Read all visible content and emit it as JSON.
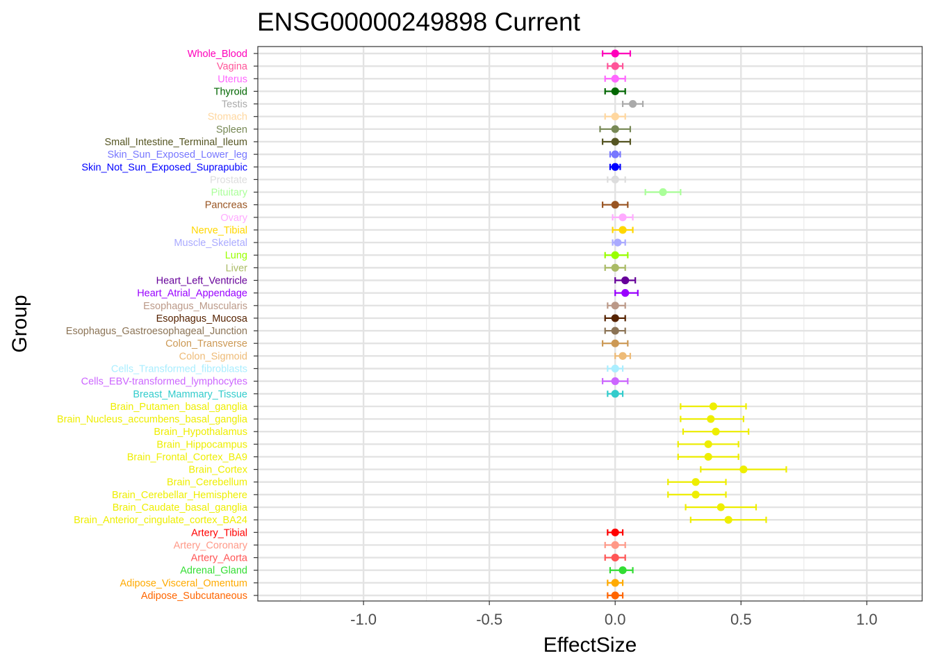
{
  "chart_data": {
    "type": "scatter",
    "title": "ENSG00000249898 Current",
    "xlabel": "EffectSize",
    "ylabel": "Group",
    "xlim": [
      -1.42,
      1.22
    ],
    "xticks": [
      -1.0,
      -0.5,
      0.0,
      0.5,
      1.0
    ],
    "xtick_labels": [
      "-1.0",
      "-0.5",
      "0.0",
      "0.5",
      "1.0"
    ],
    "grid": true,
    "legend": "none",
    "groups": [
      {
        "name": "Whole_Blood",
        "value": 0.0,
        "lower": -0.05,
        "upper": 0.06,
        "color": "#FF00BB"
      },
      {
        "name": "Vagina",
        "value": 0.0,
        "lower": -0.03,
        "upper": 0.03,
        "color": "#FF5599"
      },
      {
        "name": "Uterus",
        "value": 0.0,
        "lower": -0.04,
        "upper": 0.04,
        "color": "#FF66FF"
      },
      {
        "name": "Thyroid",
        "value": 0.0,
        "lower": -0.04,
        "upper": 0.04,
        "color": "#006600"
      },
      {
        "name": "Testis",
        "value": 0.07,
        "lower": 0.03,
        "upper": 0.11,
        "color": "#AAAAAA"
      },
      {
        "name": "Stomach",
        "value": 0.0,
        "lower": -0.04,
        "upper": 0.04,
        "color": "#FFD79F"
      },
      {
        "name": "Spleen",
        "value": 0.0,
        "lower": -0.06,
        "upper": 0.06,
        "color": "#778855"
      },
      {
        "name": "Small_Intestine_Terminal_Ileum",
        "value": 0.0,
        "lower": -0.05,
        "upper": 0.06,
        "color": "#555522"
      },
      {
        "name": "Skin_Sun_Exposed_Lower_leg",
        "value": 0.0,
        "lower": -0.02,
        "upper": 0.02,
        "color": "#7777FF"
      },
      {
        "name": "Skin_Not_Sun_Exposed_Suprapubic",
        "value": 0.0,
        "lower": -0.02,
        "upper": 0.02,
        "color": "#0000FF"
      },
      {
        "name": "Prostate",
        "value": 0.0,
        "lower": -0.03,
        "upper": 0.04,
        "color": "#DDDDDD"
      },
      {
        "name": "Pituitary",
        "value": 0.19,
        "lower": 0.12,
        "upper": 0.26,
        "color": "#AAFF99"
      },
      {
        "name": "Pancreas",
        "value": 0.0,
        "lower": -0.05,
        "upper": 0.05,
        "color": "#995522"
      },
      {
        "name": "Ovary",
        "value": 0.03,
        "lower": -0.01,
        "upper": 0.07,
        "color": "#FFAAFF"
      },
      {
        "name": "Nerve_Tibial",
        "value": 0.03,
        "lower": -0.01,
        "upper": 0.07,
        "color": "#FFD700"
      },
      {
        "name": "Muscle_Skeletal",
        "value": 0.01,
        "lower": -0.01,
        "upper": 0.04,
        "color": "#AAAAFF"
      },
      {
        "name": "Lung",
        "value": 0.0,
        "lower": -0.04,
        "upper": 0.05,
        "color": "#99FF00"
      },
      {
        "name": "Liver",
        "value": 0.0,
        "lower": -0.04,
        "upper": 0.04,
        "color": "#AABB66"
      },
      {
        "name": "Heart_Left_Ventricle",
        "value": 0.04,
        "lower": 0.0,
        "upper": 0.08,
        "color": "#660099"
      },
      {
        "name": "Heart_Atrial_Appendage",
        "value": 0.04,
        "lower": 0.0,
        "upper": 0.09,
        "color": "#9900FF"
      },
      {
        "name": "Esophagus_Muscularis",
        "value": 0.0,
        "lower": -0.03,
        "upper": 0.04,
        "color": "#BB9988"
      },
      {
        "name": "Esophagus_Mucosa",
        "value": 0.0,
        "lower": -0.04,
        "upper": 0.04,
        "color": "#552200"
      },
      {
        "name": "Esophagus_Gastroesophageal_Junction",
        "value": 0.0,
        "lower": -0.04,
        "upper": 0.04,
        "color": "#8B7355"
      },
      {
        "name": "Colon_Transverse",
        "value": 0.0,
        "lower": -0.05,
        "upper": 0.05,
        "color": "#CC9955"
      },
      {
        "name": "Colon_Sigmoid",
        "value": 0.03,
        "lower": 0.0,
        "upper": 0.06,
        "color": "#EEBB77"
      },
      {
        "name": "Cells_Transformed_fibroblasts",
        "value": 0.0,
        "lower": -0.03,
        "upper": 0.03,
        "color": "#AAEEFF"
      },
      {
        "name": "Cells_EBV-transformed_lymphocytes",
        "value": 0.0,
        "lower": -0.05,
        "upper": 0.05,
        "color": "#CC66FF"
      },
      {
        "name": "Breast_Mammary_Tissue",
        "value": 0.0,
        "lower": -0.03,
        "upper": 0.03,
        "color": "#33CCCC"
      },
      {
        "name": "Brain_Putamen_basal_ganglia",
        "value": 0.39,
        "lower": 0.26,
        "upper": 0.52,
        "color": "#EEEE00"
      },
      {
        "name": "Brain_Nucleus_accumbens_basal_ganglia",
        "value": 0.38,
        "lower": 0.26,
        "upper": 0.51,
        "color": "#EEEE00"
      },
      {
        "name": "Brain_Hypothalamus",
        "value": 0.4,
        "lower": 0.27,
        "upper": 0.53,
        "color": "#EEEE00"
      },
      {
        "name": "Brain_Hippocampus",
        "value": 0.37,
        "lower": 0.25,
        "upper": 0.49,
        "color": "#EEEE00"
      },
      {
        "name": "Brain_Frontal_Cortex_BA9",
        "value": 0.37,
        "lower": 0.25,
        "upper": 0.49,
        "color": "#EEEE00"
      },
      {
        "name": "Brain_Cortex",
        "value": 0.51,
        "lower": 0.34,
        "upper": 0.68,
        "color": "#EEEE00"
      },
      {
        "name": "Brain_Cerebellum",
        "value": 0.32,
        "lower": 0.21,
        "upper": 0.44,
        "color": "#EEEE00"
      },
      {
        "name": "Brain_Cerebellar_Hemisphere",
        "value": 0.32,
        "lower": 0.21,
        "upper": 0.44,
        "color": "#EEEE00"
      },
      {
        "name": "Brain_Caudate_basal_ganglia",
        "value": 0.42,
        "lower": 0.28,
        "upper": 0.56,
        "color": "#EEEE00"
      },
      {
        "name": "Brain_Anterior_cingulate_cortex_BA24",
        "value": 0.45,
        "lower": 0.3,
        "upper": 0.6,
        "color": "#EEEE00"
      },
      {
        "name": "Artery_Tibial",
        "value": 0.0,
        "lower": -0.03,
        "upper": 0.03,
        "color": "#FF0000"
      },
      {
        "name": "Artery_Coronary",
        "value": 0.0,
        "lower": -0.04,
        "upper": 0.04,
        "color": "#FF9988"
      },
      {
        "name": "Artery_Aorta",
        "value": 0.0,
        "lower": -0.04,
        "upper": 0.04,
        "color": "#FF5555"
      },
      {
        "name": "Adrenal_Gland",
        "value": 0.03,
        "lower": -0.02,
        "upper": 0.07,
        "color": "#33DD33"
      },
      {
        "name": "Adipose_Visceral_Omentum",
        "value": 0.0,
        "lower": -0.03,
        "upper": 0.03,
        "color": "#FFAA00"
      },
      {
        "name": "Adipose_Subcutaneous",
        "value": 0.0,
        "lower": -0.03,
        "upper": 0.03,
        "color": "#FF6600"
      }
    ]
  }
}
